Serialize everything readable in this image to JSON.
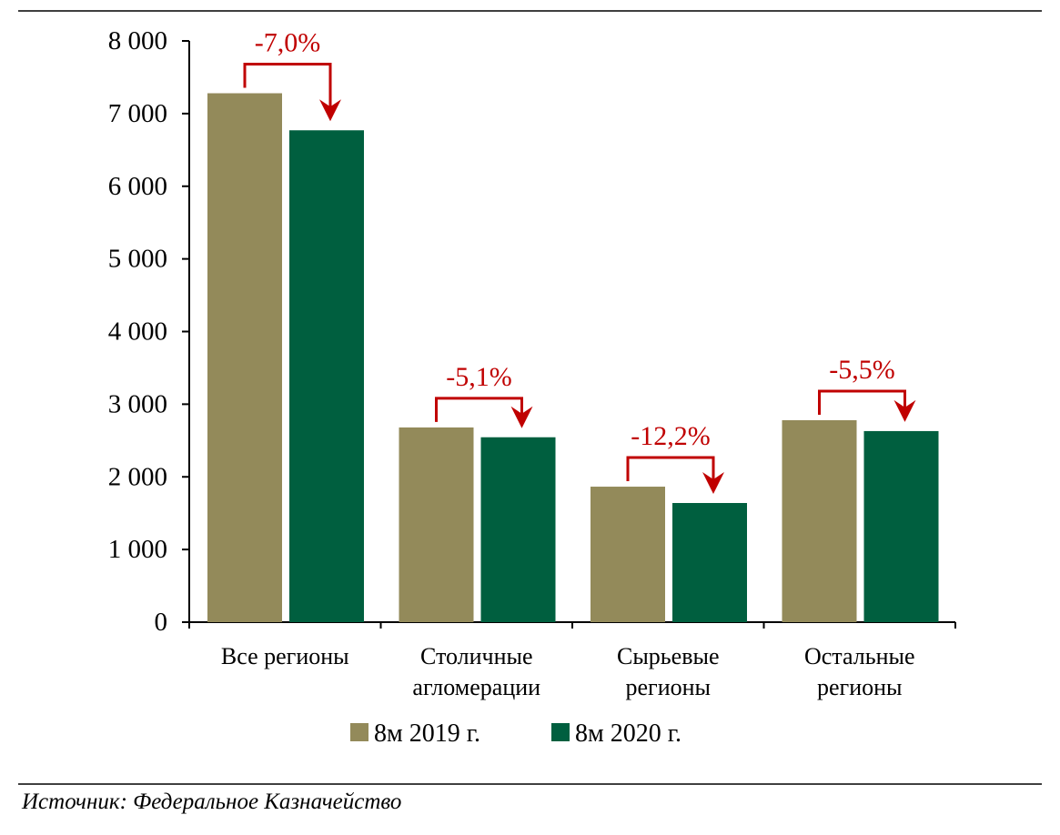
{
  "chart_data": {
    "type": "bar",
    "title": "",
    "xlabel": "",
    "ylabel": "",
    "ylim": [
      0,
      8000
    ],
    "yticks": [
      0,
      1000,
      2000,
      3000,
      4000,
      5000,
      6000,
      7000,
      8000
    ],
    "ytick_labels": [
      "0",
      "1 000",
      "2 000",
      "3 000",
      "4 000",
      "5 000",
      "6 000",
      "7 000",
      "8 000"
    ],
    "categories": [
      [
        "Все регионы"
      ],
      [
        "Столичные",
        "агломерации"
      ],
      [
        "Сырьевые",
        "регионы"
      ],
      [
        "Остальные",
        "регионы"
      ]
    ],
    "series": [
      {
        "name": "8м 2019 г.",
        "color": "#938a5a",
        "values": [
          7280,
          2680,
          1865,
          2780
        ]
      },
      {
        "name": "8м 2020 г.",
        "color": "#005f3f",
        "values": [
          6770,
          2545,
          1640,
          2630
        ]
      }
    ],
    "annotations": [
      "-7,0%",
      "-5,1%",
      "-12,2%",
      "-5,5%"
    ],
    "annotation_color": "#c00000",
    "legend": "bottom",
    "grid": false
  },
  "source": "Источник:  Федеральное Казначейство"
}
